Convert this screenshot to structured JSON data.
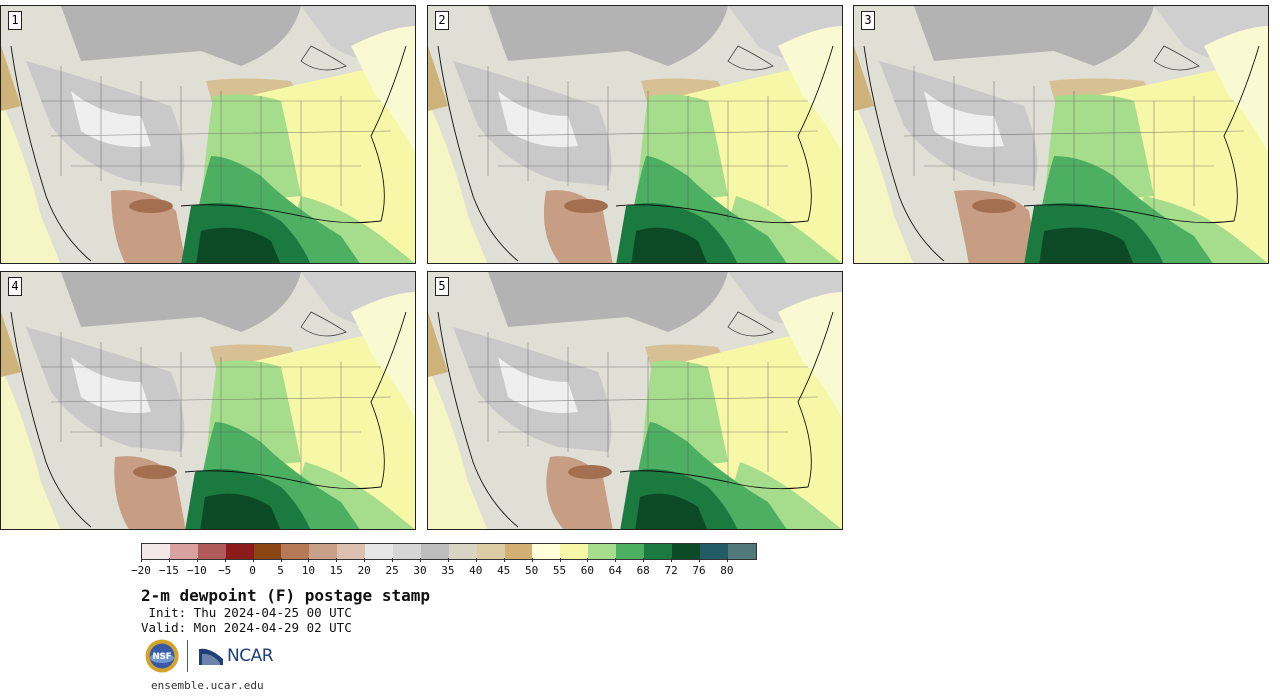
{
  "panels": [
    {
      "label": "1",
      "shift": 0
    },
    {
      "label": "2",
      "shift": 8
    },
    {
      "label": "3",
      "shift": -10
    },
    {
      "label": "4",
      "shift": 4
    },
    {
      "label": "5",
      "shift": 12
    }
  ],
  "colorbar": {
    "colors": [
      "#f3e8e8",
      "#d9a1a1",
      "#b05a5a",
      "#8c1c1c",
      "#8b4513",
      "#b57a55",
      "#c9a088",
      "#dcc0b0",
      "#e6e6e6",
      "#d6d6d6",
      "#bdbdbd",
      "#d9d4c4",
      "#dccda4",
      "#d2b074",
      "#ffffd9",
      "#f7f7a8",
      "#a6dd8c",
      "#4daf62",
      "#1b7a3f",
      "#0c4a26",
      "#225b63",
      "#51797b"
    ],
    "ticks": [
      "−20",
      "−15",
      "−10",
      "−5",
      "0",
      "5",
      "10",
      "15",
      "20",
      "25",
      "30",
      "35",
      "40",
      "45",
      "50",
      "55",
      "60",
      "64",
      "68",
      "72",
      "76",
      "80"
    ]
  },
  "title": "2-m dewpoint (F) postage stamp",
  "init": " Init: Thu 2024-04-25 00 UTC",
  "valid": "Valid: Mon 2024-04-29 02 UTC",
  "logos": {
    "ncar": "NCAR",
    "nsf": "NSF"
  },
  "website": "ensemble.ucar.edu"
}
